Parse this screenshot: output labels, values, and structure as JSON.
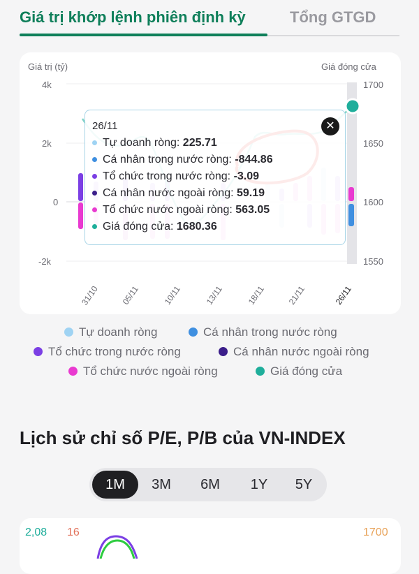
{
  "tabs": {
    "active_label": "Giá trị khớp lệnh phiên định kỳ",
    "inactive_label": "Tổng GTGD"
  },
  "chart": {
    "left_axis_title": "Giá trị (tỷ)",
    "right_axis_title": "Giá đóng cửa",
    "left_ticks": [
      "4k",
      "2k",
      "0",
      "-2k"
    ],
    "right_ticks": [
      "1700",
      "1650",
      "1600",
      "1550"
    ],
    "x_ticks": [
      "31/10",
      "05/11",
      "10/11",
      "13/11",
      "18/11",
      "21/11",
      "26/11"
    ]
  },
  "tooltip": {
    "date": "26/11",
    "rows": [
      {
        "label": "Tự doanh ròng:",
        "value": "225.71",
        "color": "#9fd3f3"
      },
      {
        "label": "Cá nhân trong nước ròng:",
        "value": "-844.86",
        "color": "#3f8fe0"
      },
      {
        "label": "Tổ chức trong nước ròng:",
        "value": "-3.09",
        "color": "#7b3fe4"
      },
      {
        "label": "Cá nhân nước ngoài ròng:",
        "value": "59.19",
        "color": "#3b1e8a"
      },
      {
        "label": "Tổ chức nước ngoài ròng:",
        "value": "563.05",
        "color": "#e93ad0"
      },
      {
        "label": "Giá đóng cửa:",
        "value": "1680.36",
        "color": "#1fae9b"
      }
    ]
  },
  "legend": [
    {
      "label": "Tự doanh ròng",
      "color": "#9fd3f3"
    },
    {
      "label": "Cá nhân trong nước ròng",
      "color": "#3f8fe0"
    },
    {
      "label": "Tổ chức trong nước ròng",
      "color": "#7b3fe4"
    },
    {
      "label": "Cá nhân nước ngoài ròng",
      "color": "#3b1e8a"
    },
    {
      "label": "Tổ chức nước ngoài ròng",
      "color": "#e93ad0"
    },
    {
      "label": "Giá đóng cửa",
      "color": "#1fae9b"
    }
  ],
  "section": {
    "title": "Lịch sử chỉ số P/E, P/B của VN-INDEX",
    "periods": [
      "1M",
      "3M",
      "6M",
      "1Y",
      "5Y"
    ],
    "selected_period": "1M",
    "axis_labels": {
      "left_pb": "2,08",
      "left_pe": "16",
      "right": "1700"
    }
  }
}
